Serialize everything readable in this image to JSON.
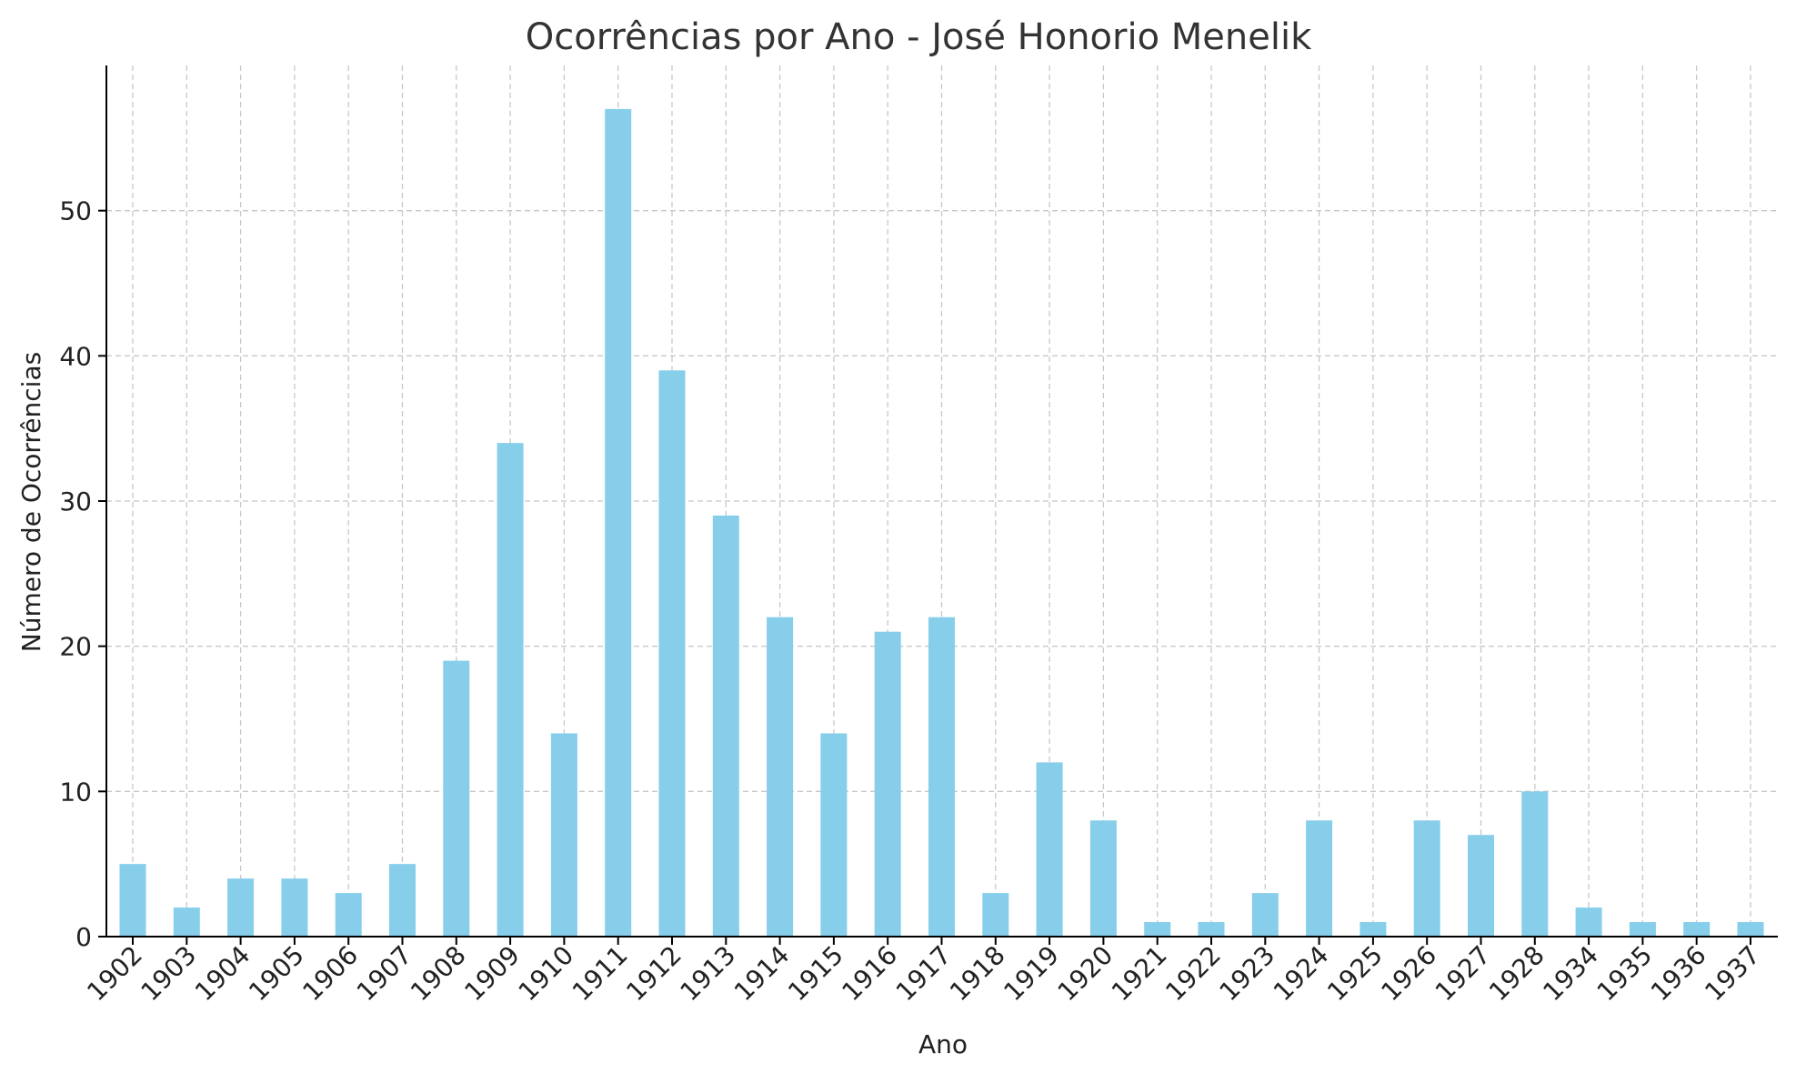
{
  "chart_data": {
    "type": "bar",
    "title": "Ocorrências por Ano - José Honorio Menelik",
    "xlabel": "Ano",
    "ylabel": "Número de Ocorrências",
    "categories": [
      "1902",
      "1903",
      "1904",
      "1905",
      "1906",
      "1907",
      "1908",
      "1909",
      "1910",
      "1911",
      "1912",
      "1913",
      "1914",
      "1915",
      "1916",
      "1917",
      "1918",
      "1919",
      "1920",
      "1921",
      "1922",
      "1923",
      "1924",
      "1925",
      "1926",
      "1927",
      "1928",
      "1934",
      "1935",
      "1936",
      "1937"
    ],
    "values": [
      5,
      2,
      4,
      4,
      3,
      5,
      19,
      34,
      14,
      57,
      39,
      29,
      22,
      14,
      21,
      22,
      3,
      12,
      8,
      1,
      1,
      3,
      8,
      1,
      8,
      7,
      10,
      2,
      1,
      1,
      1
    ],
    "ylim": [
      0,
      60
    ],
    "yticks": [
      0,
      10,
      20,
      30,
      40,
      50
    ],
    "grid": true,
    "bar_color": "#87CEEB"
  }
}
